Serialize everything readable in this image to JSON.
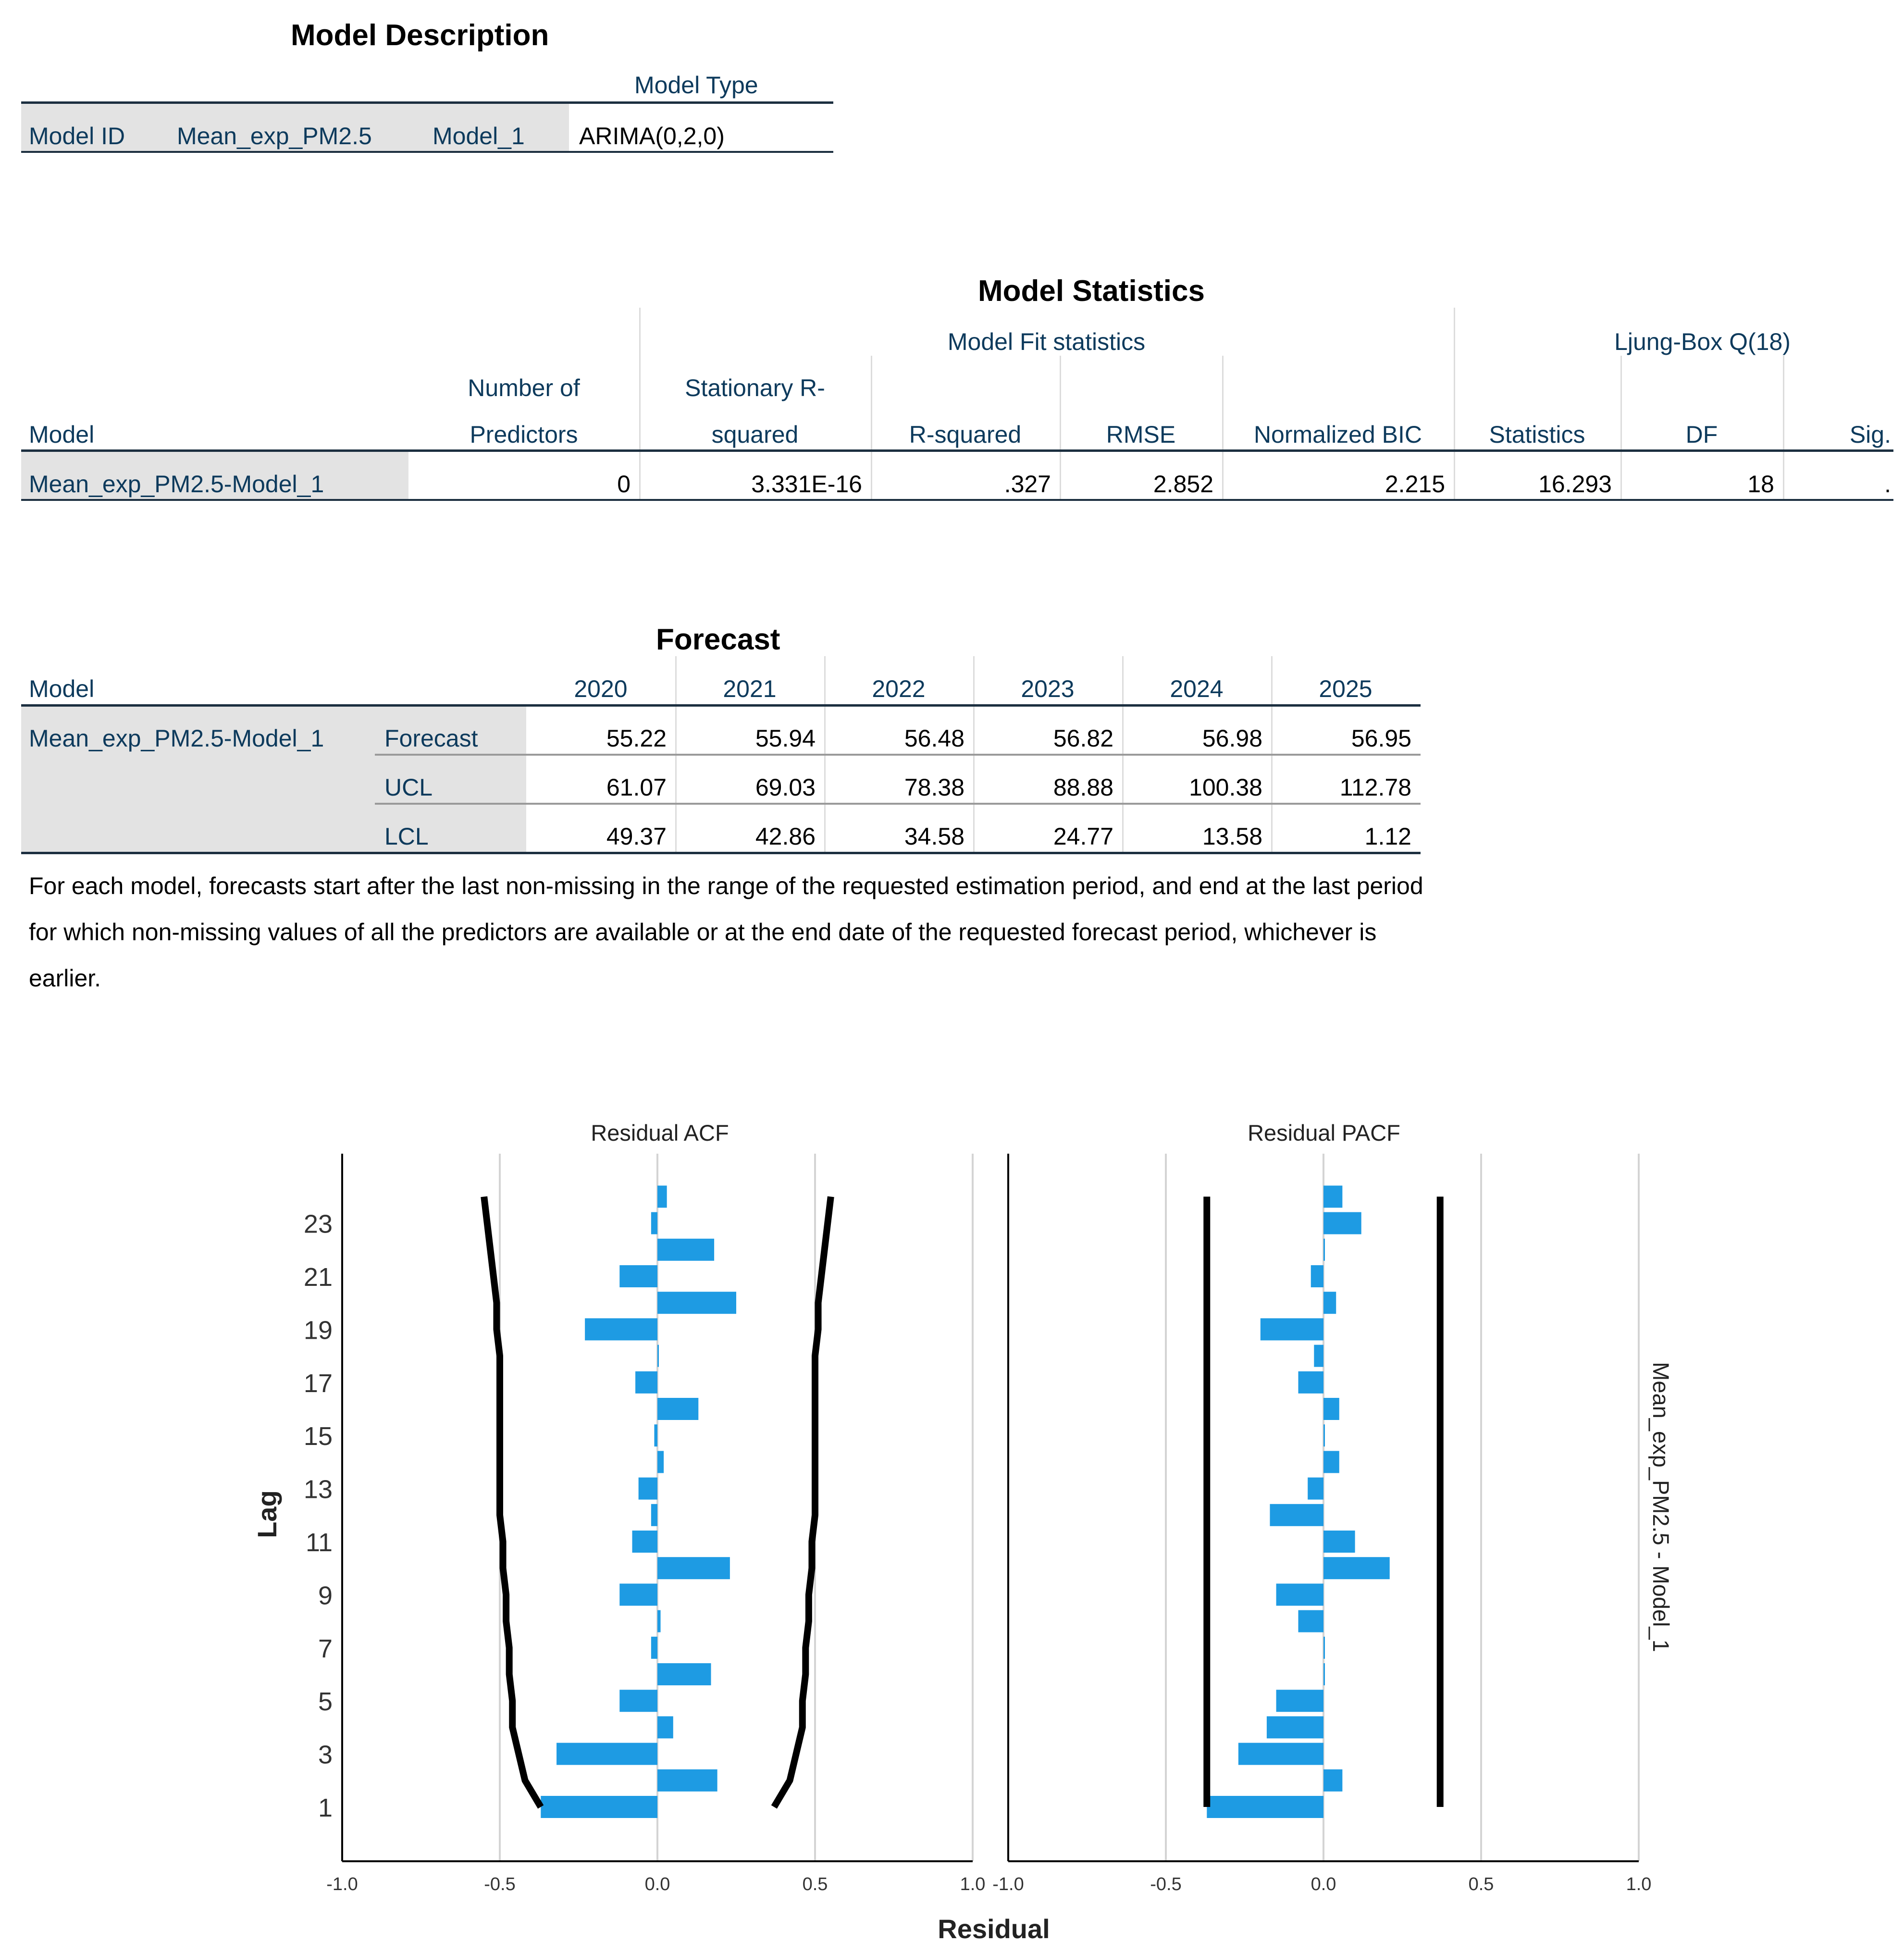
{
  "model_description": {
    "title": "Model Description",
    "col_header": "Model Type",
    "row": {
      "label": "Model ID",
      "series": "Mean_exp_PM2.5",
      "model": "Model_1",
      "type": "ARIMA(0,2,0)"
    }
  },
  "model_statistics": {
    "title": "Model Statistics",
    "group_fit": "Model Fit statistics",
    "group_ljung": "Ljung-Box Q(18)",
    "h_model": "Model",
    "h_predictors_1": "Number of",
    "h_predictors_2": "Predictors",
    "h_stat_r2_1": "Stationary R-",
    "h_stat_r2_2": "squared",
    "h_r2": "R-squared",
    "h_rmse": "RMSE",
    "h_bic": "Normalized BIC",
    "h_statistics": "Statistics",
    "h_df": "DF",
    "h_sig": "Sig.",
    "row": {
      "model": "Mean_exp_PM2.5-Model_1",
      "predictors": "0",
      "stat_r2": "3.331E-16",
      "r2": ".327",
      "rmse": "2.852",
      "bic": "2.215",
      "statistics": "16.293",
      "df": "18",
      "sig": "."
    }
  },
  "forecast": {
    "title": "Forecast",
    "h_model": "Model",
    "years": [
      "2020",
      "2021",
      "2022",
      "2023",
      "2024",
      "2025"
    ],
    "model": "Mean_exp_PM2.5-Model_1",
    "rows": [
      {
        "label": "Forecast",
        "values": [
          "55.22",
          "55.94",
          "56.48",
          "56.82",
          "56.98",
          "56.95"
        ]
      },
      {
        "label": "UCL",
        "values": [
          "61.07",
          "69.03",
          "78.38",
          "88.88",
          "100.38",
          "112.78"
        ]
      },
      {
        "label": "LCL",
        "values": [
          "49.37",
          "42.86",
          "34.58",
          "24.77",
          "13.58",
          "1.12"
        ]
      }
    ],
    "note": "For each model, forecasts start after the last non-missing in the range of the requested estimation period, and end at the last period for which non-missing values of all the predictors are available or at the end date of the requested forecast period, whichever is earlier."
  },
  "colors": {
    "bar": "#1e9be3",
    "limit": "#000000",
    "grid": "#d4d4d4",
    "header_text": "#0d3a5c"
  },
  "chart_data": [
    {
      "type": "bar",
      "orientation": "horizontal",
      "title": "Residual ACF",
      "xlabel": "Residual",
      "ylabel": "Lag",
      "xlim": [
        -1.0,
        1.0
      ],
      "xticks": [
        "-1.0",
        "-0.5",
        "0.0",
        "0.5",
        "1.0"
      ],
      "yticks": [
        "1",
        "3",
        "5",
        "7",
        "9",
        "11",
        "13",
        "15",
        "17",
        "19",
        "21",
        "23"
      ],
      "lags": [
        1,
        2,
        3,
        4,
        5,
        6,
        7,
        8,
        9,
        10,
        11,
        12,
        13,
        14,
        15,
        16,
        17,
        18,
        19,
        20,
        21,
        22,
        23,
        24
      ],
      "values": [
        -0.37,
        0.19,
        -0.32,
        0.05,
        -0.12,
        0.17,
        -0.02,
        0.01,
        -0.12,
        0.23,
        -0.08,
        -0.02,
        -0.06,
        0.02,
        -0.01,
        0.13,
        -0.07,
        0.0,
        -0.23,
        0.25,
        -0.12,
        0.18,
        -0.02,
        0.03
      ],
      "confidence_limit": [
        0.37,
        0.42,
        0.44,
        0.46,
        0.46,
        0.47,
        0.47,
        0.48,
        0.48,
        0.49,
        0.49,
        0.5,
        0.5,
        0.5,
        0.5,
        0.5,
        0.5,
        0.5,
        0.51,
        0.51,
        0.52,
        0.53,
        0.54,
        0.55
      ],
      "grid": true
    },
    {
      "type": "bar",
      "orientation": "horizontal",
      "title": "Residual PACF",
      "xlabel": "Residual",
      "ylabel": "Lag",
      "xlim": [
        -1.0,
        1.0
      ],
      "xticks": [
        "-1.0",
        "-0.5",
        "0.0",
        "0.5",
        "1.0"
      ],
      "lags": [
        1,
        2,
        3,
        4,
        5,
        6,
        7,
        8,
        9,
        10,
        11,
        12,
        13,
        14,
        15,
        16,
        17,
        18,
        19,
        20,
        21,
        22,
        23,
        24
      ],
      "values": [
        -0.37,
        0.06,
        -0.27,
        -0.18,
        -0.15,
        0.0,
        0.0,
        -0.08,
        -0.15,
        0.21,
        0.1,
        -0.17,
        -0.05,
        0.05,
        0.0,
        0.05,
        -0.08,
        -0.03,
        -0.2,
        0.04,
        -0.04,
        0.0,
        0.12,
        0.06
      ],
      "confidence_limit": [
        0.37,
        0.37,
        0.37,
        0.37,
        0.37,
        0.37,
        0.37,
        0.37,
        0.37,
        0.37,
        0.37,
        0.37,
        0.37,
        0.37,
        0.37,
        0.37,
        0.37,
        0.37,
        0.37,
        0.37,
        0.37,
        0.37,
        0.37,
        0.37
      ],
      "grid": true,
      "side_label": "Mean_exp_PM2.5 - Model_1"
    }
  ]
}
